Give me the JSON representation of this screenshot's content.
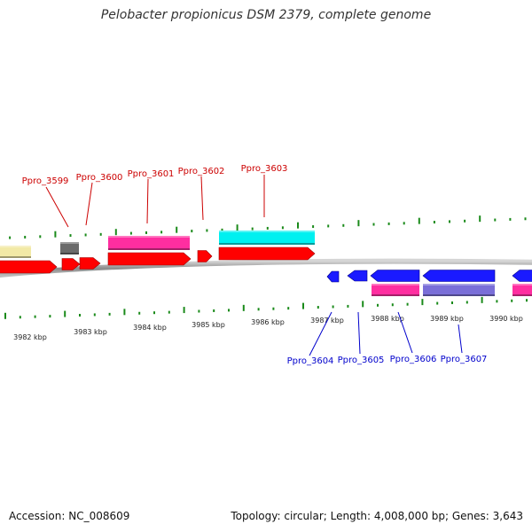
{
  "title": "Pelobacter propionicus DSM 2379, complete genome",
  "footer": {
    "accession": "Accession: NC_008609",
    "summary": "Topology: circular; Length: 4,008,000 bp; Genes: 3,643"
  },
  "colors": {
    "tick": "#1a8a1a",
    "backbone": "#9a9a9a",
    "top_label": "#cc0000",
    "bottom_label": "#0000cc",
    "red_gene": "#ff0000",
    "blue_gene": "#1a1aff",
    "magenta_feature": "#ff2ea0",
    "cyan_feature": "#00f0f0",
    "yellow_feature": "#f2e9a6",
    "gray_feature": "#6b6b6b",
    "purple_feature": "#7a6fd8"
  },
  "scale_labels": [
    "3982 kbp",
    "3983 kbp",
    "3984 kbp",
    "3985 kbp",
    "3986 kbp",
    "3987 kbp",
    "3988 kbp",
    "3989 kbp",
    "3990 kbp"
  ],
  "top_genes": [
    "Ppro_3599",
    "Ppro_3600",
    "Ppro_3601",
    "Ppro_3602",
    "Ppro_3603"
  ],
  "bottom_genes": [
    "Ppro_3604",
    "Ppro_3605",
    "Ppro_3606",
    "Ppro_3607"
  ]
}
